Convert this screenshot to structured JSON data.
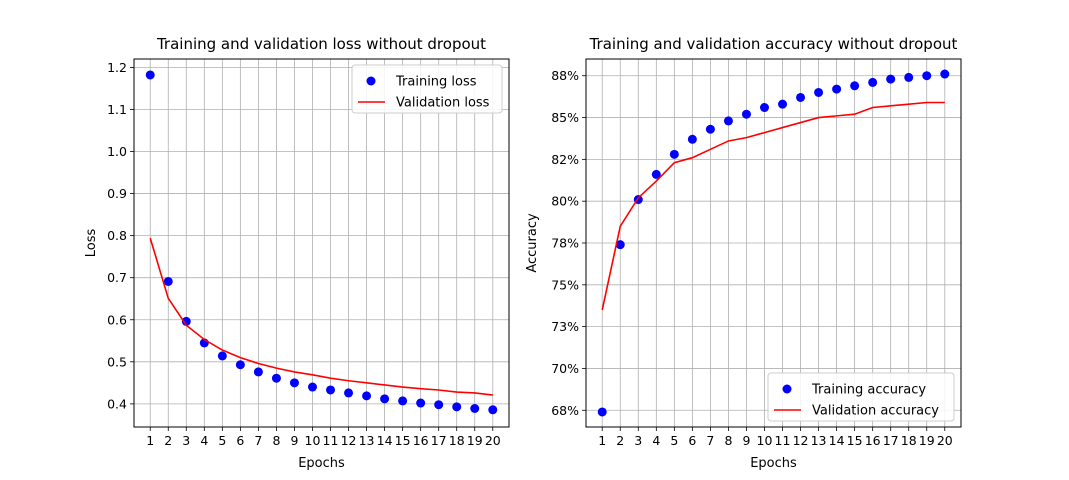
{
  "chart_data": [
    {
      "type": "line",
      "title": "Training and validation loss without dropout",
      "xlabel": "Epochs",
      "ylabel": "Loss",
      "x": [
        1,
        2,
        3,
        4,
        5,
        6,
        7,
        8,
        9,
        10,
        11,
        12,
        13,
        14,
        15,
        16,
        17,
        18,
        19,
        20
      ],
      "xticks": [
        "1",
        "2",
        "3",
        "4",
        "5",
        "6",
        "7",
        "8",
        "9",
        "10",
        "11",
        "12",
        "13",
        "14",
        "15",
        "16",
        "17",
        "18",
        "19",
        "20"
      ],
      "xlim": [
        0.1,
        20.9
      ],
      "ylim": [
        0.345,
        1.22
      ],
      "yticks": [
        0.4,
        0.5,
        0.6,
        0.7,
        0.8,
        0.9,
        1.0,
        1.1,
        1.2
      ],
      "yticklabels": [
        "0.4",
        "0.5",
        "0.6",
        "0.7",
        "0.8",
        "0.9",
        "1.0",
        "1.1",
        "1.2"
      ],
      "grid": true,
      "legend": "upper right",
      "series": [
        {
          "name": "Training loss",
          "style": "points",
          "color": "#0000ff",
          "values": [
            1.182,
            0.691,
            0.596,
            0.545,
            0.514,
            0.493,
            0.476,
            0.461,
            0.45,
            0.44,
            0.433,
            0.426,
            0.419,
            0.412,
            0.407,
            0.402,
            0.398,
            0.393,
            0.389,
            0.386
          ]
        },
        {
          "name": "Validation loss",
          "style": "line",
          "color": "#ff0000",
          "values": [
            0.794,
            0.651,
            0.587,
            0.553,
            0.528,
            0.51,
            0.496,
            0.485,
            0.476,
            0.469,
            0.461,
            0.455,
            0.45,
            0.445,
            0.44,
            0.436,
            0.433,
            0.428,
            0.426,
            0.421
          ]
        }
      ]
    },
    {
      "type": "line",
      "title": "Training and validation accuracy without dropout",
      "xlabel": "Epochs",
      "ylabel": "Accuracy",
      "x": [
        1,
        2,
        3,
        4,
        5,
        6,
        7,
        8,
        9,
        10,
        11,
        12,
        13,
        14,
        15,
        16,
        17,
        18,
        19,
        20
      ],
      "xticks": [
        "1",
        "2",
        "3",
        "4",
        "5",
        "6",
        "7",
        "8",
        "9",
        "10",
        "11",
        "12",
        "13",
        "14",
        "15",
        "16",
        "17",
        "18",
        "19",
        "20"
      ],
      "xlim": [
        0.1,
        20.9
      ],
      "ylim": [
        0.665,
        0.885
      ],
      "yticks": [
        0.675,
        0.7,
        0.725,
        0.75,
        0.775,
        0.8,
        0.825,
        0.85,
        0.875
      ],
      "yticklabels": [
        "68%",
        "70%",
        "73%",
        "75%",
        "78%",
        "80%",
        "82%",
        "85%",
        "88%"
      ],
      "grid": true,
      "legend": "lower right",
      "series": [
        {
          "name": "Training accuracy",
          "style": "points",
          "color": "#0000ff",
          "values": [
            0.674,
            0.774,
            0.801,
            0.816,
            0.828,
            0.837,
            0.843,
            0.848,
            0.852,
            0.856,
            0.858,
            0.862,
            0.865,
            0.867,
            0.869,
            0.871,
            0.873,
            0.874,
            0.875,
            0.876
          ]
        },
        {
          "name": "Validation accuracy",
          "style": "line",
          "color": "#ff0000",
          "values": [
            0.735,
            0.785,
            0.802,
            0.812,
            0.823,
            0.826,
            0.831,
            0.836,
            0.838,
            0.841,
            0.844,
            0.847,
            0.85,
            0.851,
            0.852,
            0.856,
            0.857,
            0.858,
            0.859,
            0.859
          ]
        }
      ]
    }
  ]
}
